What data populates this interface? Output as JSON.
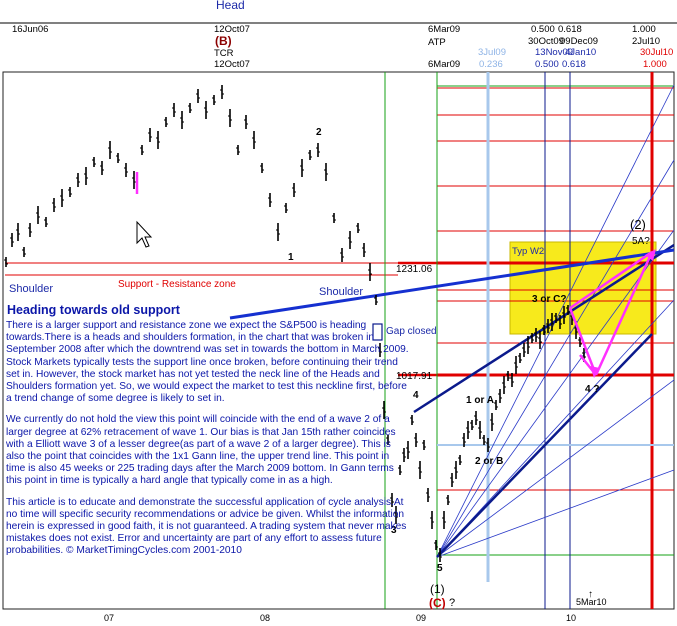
{
  "chart_data": {
    "type": "line",
    "title": "Heading towards old support",
    "series": [
      {
        "name": "",
        "kind": "price-bars",
        "values": []
      }
    ],
    "x_ticks": [
      "07",
      "08",
      "09",
      "10"
    ],
    "top_dates": {
      "left": "16Jun06",
      "head_label": "Head",
      "head_date": "12Oct07",
      "head_wave": "(B)",
      "tcr": "TCR",
      "tcr_date": "12Oct07",
      "atp_date": "6Mar09",
      "atp": "ATP",
      "atp_date2": "6Mar09",
      "fib_500": "0.500",
      "fib_618": "0.618",
      "fib_date1": "30Oct09",
      "fib_date2": "09Dec09",
      "fib_date3": "13Nov09",
      "fib_date4": "4Jan10",
      "fib_1000": "1.000",
      "fib_date5": "2Jul10",
      "fib_date6": "30Jul10",
      "fib_1000b": "1.000",
      "fib_500b": "0.500",
      "fib_618b": "0.618",
      "light_date": "3Jul09",
      "light_ratio": "0.236"
    },
    "price_levels": [
      {
        "label": "1231.06",
        "value": 1231.06
      },
      {
        "label": "1017.91",
        "value": 1017.91
      }
    ],
    "annotations": {
      "support_zone": "Support - Resistance zone",
      "shoulder_left": "Shoulder",
      "shoulder_right": "Shoulder",
      "gap": "Gap closed",
      "typ_box": "Typ W2",
      "three_or_c": "3 or C?",
      "one_or_a": "1 or A",
      "two_or_b": "2 or B",
      "four_q": "4 ?",
      "wave_two_paren": "(2)",
      "five_a_q": "5A?",
      "wave_one_paren": "(1)",
      "wave_c_paren": "(C)",
      "q_after_c": "?",
      "w1": "1",
      "w2": "2",
      "w3": "3",
      "w4": "4",
      "w5": "5",
      "mar10_arrow": "↑",
      "mar10": "5Mar10"
    },
    "colors": {
      "price": "#000000",
      "fib_red": "#e00000",
      "fib_light": "#a8c8ec",
      "channel": "#0b1a8c",
      "magenta": "#ff30ff",
      "zone_fill": "#f7ea1c",
      "text_blue": "#0b16a8"
    }
  },
  "commentary": [
    "There is a larger support and resistance zone we expect the S&P500 is heading towards.There is a heads and shoulders formation, in the chart that was broken in September 2008 after which the downtrend was set in towards the bottom in March 2009. Stock Markets typically tests the support line once broken, before continuing their trend set in. However, the stock market has not yet tested the neck line of the Heads and Shoulders formation yet. So, we would expect the market to test this neckline first, before a trend change of some degree is likely to set in.",
    "We currently do not hold the view this point will coincide with the end of a wave 2 of a larger degree at 62% retracement of wave 1. Our bias is that Jan 15th rather coincides with a Elliott wave 3 of a lesser degree(as part of a wave 2 of a larger degree). This is also the point that coincides with the 1x1 Gann line, the upper trend line. This point in time is also 45 weeks or 225 trading days after the March 2009 bottom. In Gann terms this point in time is typically a hard angle that typically come in as a high.",
    "This article is to educate and demonstrate the successful application of cycle analysis.At no time will specific security recommendations or advice be given. Whilst the information herein is expressed in good faith, it is not guaranteed. A trading system that never makes mistakes does not exist. Error and uncertainty are part of any effort to assess future probabilities. © MarketTimingCycles.com 2001-2010"
  ]
}
